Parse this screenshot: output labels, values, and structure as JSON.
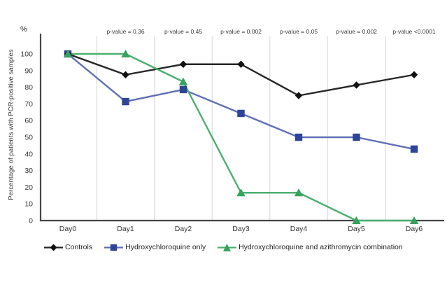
{
  "chart_data": {
    "type": "line",
    "title": "",
    "percent_symbol": "%",
    "ylabel": "Percentage of patients with PCR-positive samples",
    "xlabel": "",
    "x_categories": [
      "Day0",
      "Day1",
      "Day2",
      "Day3",
      "Day4",
      "Day5",
      "Day6"
    ],
    "y_ticks": [
      0,
      10,
      20,
      30,
      40,
      50,
      60,
      70,
      80,
      90,
      100
    ],
    "ylim": [
      0,
      100
    ],
    "grid": "vertical gridlines between day categories, no horizontal gridlines",
    "legend_position": "bottom",
    "p_values": [
      {
        "day": "Day1",
        "label": "p-value = 0.36"
      },
      {
        "day": "Day2",
        "label": "p-value = 0.45"
      },
      {
        "day": "Day3",
        "label": "p-value = 0.002"
      },
      {
        "day": "Day4",
        "label": "p-value = 0.05"
      },
      {
        "day": "Day5",
        "label": "p-value = 0.002"
      },
      {
        "day": "Day6",
        "label": "p-value <0.0001"
      }
    ],
    "series": [
      {
        "name": "Controls",
        "marker": "diamond",
        "marker_color": "#111111",
        "line_color": "#262626",
        "values": [
          100,
          87.5,
          93.8,
          93.8,
          75,
          81.3,
          87.5
        ]
      },
      {
        "name": "Hydroxychloroquine only",
        "marker": "square",
        "marker_color": "#2e4499",
        "line_color": "#5f6fb4",
        "values": [
          100,
          71.4,
          78.6,
          64.3,
          50,
          50,
          42.9
        ]
      },
      {
        "name": "Hydroxychloroquine and azithromycin combination",
        "marker": "triangle",
        "marker_color": "#35a25e",
        "line_color": "#4caf6f",
        "values": [
          100,
          100,
          83.3,
          16.7,
          16.7,
          0,
          0
        ]
      }
    ],
    "colors": {
      "axis": "#454545",
      "grid": "#dcdcdc",
      "tick_text": "#333333",
      "p_value_text": "#3d3d3d",
      "background": "#ffffff"
    }
  }
}
